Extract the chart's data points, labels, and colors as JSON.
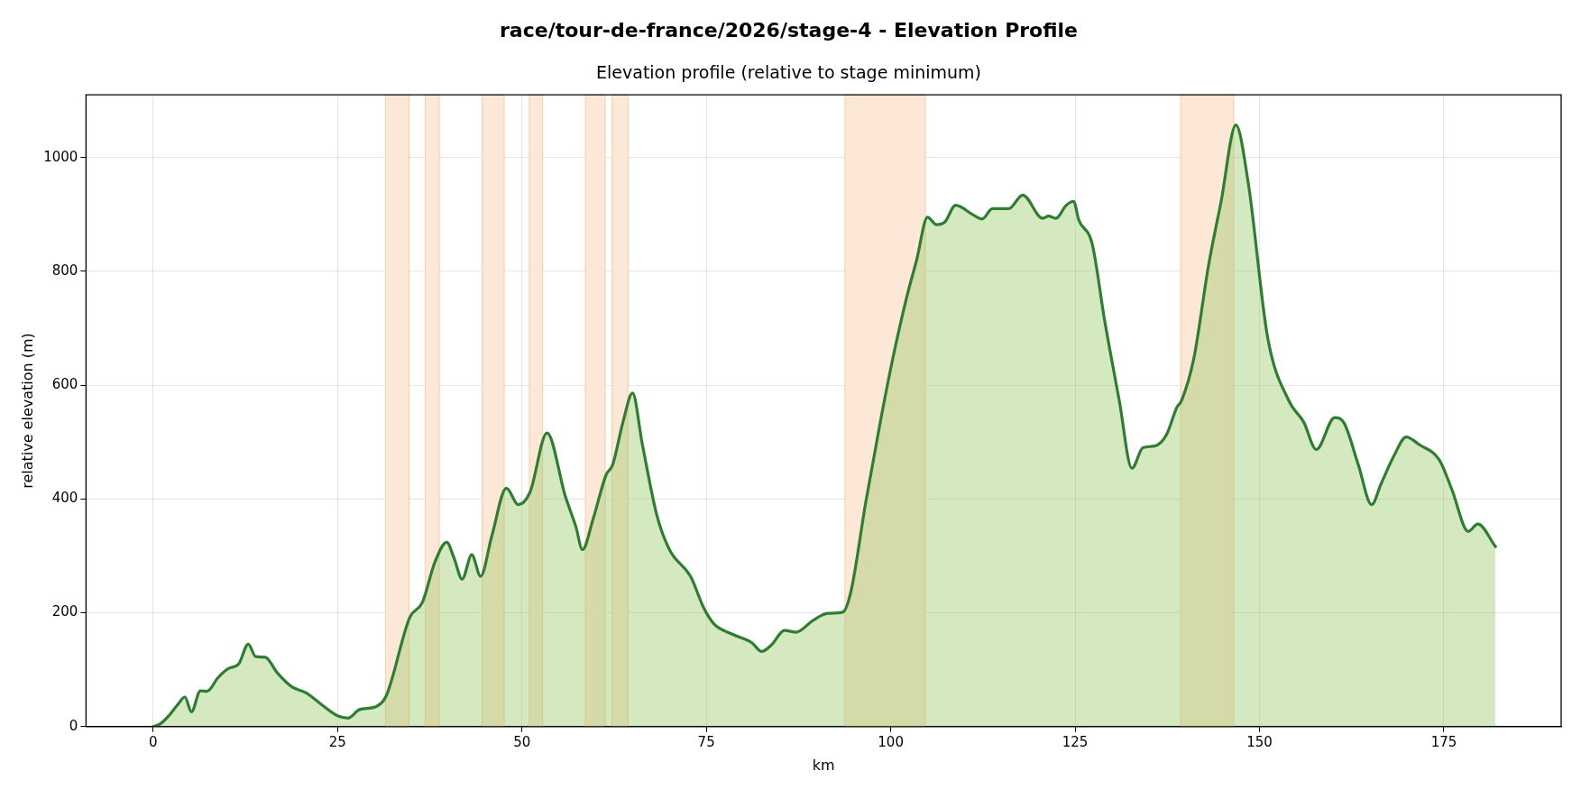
{
  "chart_data": {
    "type": "area",
    "title": "race/tour-de-france/2026/stage-4 - Elevation Profile",
    "subtitle": "Elevation profile (relative to stage minimum)",
    "xlabel": "km",
    "ylabel": "relative elevation (m)",
    "xlim": [
      -9.1,
      190.9
    ],
    "xticks": [
      0,
      25,
      50,
      75,
      100,
      125,
      150,
      175
    ],
    "ylim": [
      0,
      1110
    ],
    "yticks": [
      0,
      200,
      400,
      600,
      800,
      1000
    ],
    "grid": true,
    "legend": false,
    "series": [
      {
        "color": "#2e7d32",
        "x": [
          0,
          1.0,
          2.2,
          3.3,
          4.3,
          5.2,
          6.4,
          7.3,
          8.8,
          10.2,
          11.6,
          12.9,
          13.9,
          15.2,
          16.8,
          18.8,
          20.8,
          22.8,
          25.0,
          26.4,
          28.0,
          30.2,
          31.6,
          34.8,
          36.5,
          38.2,
          39.8,
          40.8,
          41.9,
          43.2,
          44.4,
          45.9,
          47.9,
          49.5,
          51.1,
          53.4,
          55.9,
          57.3,
          58.2,
          59.7,
          61.4,
          62.3,
          63.7,
          65.0,
          66.3,
          68.3,
          70.0,
          72.9,
          74.6,
          76.0,
          78.6,
          81.2,
          82.5,
          83.8,
          85.6,
          87.2,
          89.5,
          91.5,
          93.5,
          94.6,
          96.6,
          98.7,
          100.4,
          102.1,
          103.5,
          105.0,
          106.2,
          107.3,
          108.8,
          111.2,
          112.4,
          113.8,
          116.0,
          117.9,
          120.6,
          121.4,
          122.4,
          123.8,
          124.8,
          125.5,
          127.3,
          129.0,
          131.0,
          132.7,
          134.2,
          135.8,
          137.4,
          138.8,
          139.4,
          141.1,
          143.1,
          144.8,
          146.8,
          148.5,
          151.1,
          154.0,
          156.0,
          157.7,
          160.2,
          161.4,
          163.4,
          165.2,
          166.5,
          168.2,
          169.9,
          171.6,
          174.4,
          176.1,
          178.3,
          179.6,
          182.0
        ],
        "values": [
          0,
          5,
          20,
          38,
          52,
          26,
          63,
          62,
          86,
          102,
          110,
          145,
          123,
          122,
          95,
          70,
          59,
          39,
          19,
          15,
          30,
          35,
          54,
          192,
          218,
          289,
          324,
          296,
          259,
          302,
          264,
          334,
          419,
          390,
          412,
          516,
          404,
          352,
          311,
          367,
          442,
          460,
          535,
          586,
          498,
          371,
          311,
          263,
          210,
          181,
          162,
          147,
          132,
          143,
          169,
          166,
          187,
          199,
          201,
          237,
          393,
          543,
          654,
          751,
          819,
          895,
          882,
          886,
          916,
          899,
          892,
          910,
          910,
          934,
          893,
          897,
          893,
          916,
          923,
          890,
          849,
          714,
          572,
          454,
          490,
          493,
          513,
          561,
          572,
          647,
          811,
          923,
          1057,
          953,
          684,
          572,
          535,
          487,
          543,
          535,
          460,
          390,
          427,
          475,
          509,
          496,
          468,
          416,
          343,
          356,
          316
        ]
      }
    ],
    "bands": [
      {
        "axis": "x",
        "from": 31.5,
        "to": 34.7,
        "color": "#fde8d7"
      },
      {
        "axis": "x",
        "from": 36.9,
        "to": 38.8,
        "color": "#fde8d7"
      },
      {
        "axis": "x",
        "from": 44.6,
        "to": 47.6,
        "color": "#fde8d7"
      },
      {
        "axis": "x",
        "from": 51.0,
        "to": 52.8,
        "color": "#fde8d7"
      },
      {
        "axis": "x",
        "from": 58.6,
        "to": 61.3,
        "color": "#fde8d7"
      },
      {
        "axis": "x",
        "from": 62.2,
        "to": 64.4,
        "color": "#fde8d7"
      },
      {
        "axis": "x",
        "from": 93.8,
        "to": 104.7,
        "color": "#fde8d7"
      },
      {
        "axis": "x",
        "from": 139.3,
        "to": 146.5,
        "color": "#fde8d7"
      }
    ]
  }
}
